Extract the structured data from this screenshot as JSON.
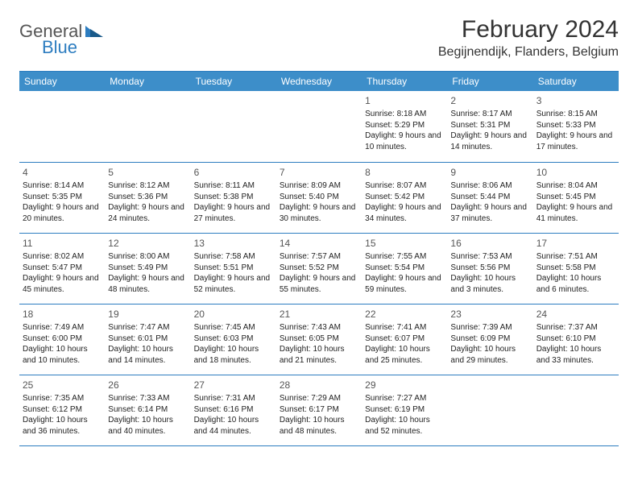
{
  "logo": {
    "text1": "General",
    "text2": "Blue"
  },
  "title": "February 2024",
  "location": "Begijnendijk, Flanders, Belgium",
  "colors": {
    "header_bg": "#3d8ec9",
    "header_text": "#ffffff",
    "border": "#2d7dc0",
    "logo_gray": "#555555",
    "logo_blue": "#2d7dc0",
    "text": "#222222",
    "background": "#ffffff"
  },
  "typography": {
    "title_fontsize": 30,
    "location_fontsize": 16,
    "dayhead_fontsize": 12,
    "daynum_fontsize": 12,
    "body_fontsize": 10
  },
  "layout": {
    "columns": 7,
    "rows": 5,
    "first_weekday_index": 4
  },
  "weekdays": [
    "Sunday",
    "Monday",
    "Tuesday",
    "Wednesday",
    "Thursday",
    "Friday",
    "Saturday"
  ],
  "days": [
    {
      "n": "1",
      "sunrise": "Sunrise: 8:18 AM",
      "sunset": "Sunset: 5:29 PM",
      "daylight": "Daylight: 9 hours and 10 minutes."
    },
    {
      "n": "2",
      "sunrise": "Sunrise: 8:17 AM",
      "sunset": "Sunset: 5:31 PM",
      "daylight": "Daylight: 9 hours and 14 minutes."
    },
    {
      "n": "3",
      "sunrise": "Sunrise: 8:15 AM",
      "sunset": "Sunset: 5:33 PM",
      "daylight": "Daylight: 9 hours and 17 minutes."
    },
    {
      "n": "4",
      "sunrise": "Sunrise: 8:14 AM",
      "sunset": "Sunset: 5:35 PM",
      "daylight": "Daylight: 9 hours and 20 minutes."
    },
    {
      "n": "5",
      "sunrise": "Sunrise: 8:12 AM",
      "sunset": "Sunset: 5:36 PM",
      "daylight": "Daylight: 9 hours and 24 minutes."
    },
    {
      "n": "6",
      "sunrise": "Sunrise: 8:11 AM",
      "sunset": "Sunset: 5:38 PM",
      "daylight": "Daylight: 9 hours and 27 minutes."
    },
    {
      "n": "7",
      "sunrise": "Sunrise: 8:09 AM",
      "sunset": "Sunset: 5:40 PM",
      "daylight": "Daylight: 9 hours and 30 minutes."
    },
    {
      "n": "8",
      "sunrise": "Sunrise: 8:07 AM",
      "sunset": "Sunset: 5:42 PM",
      "daylight": "Daylight: 9 hours and 34 minutes."
    },
    {
      "n": "9",
      "sunrise": "Sunrise: 8:06 AM",
      "sunset": "Sunset: 5:44 PM",
      "daylight": "Daylight: 9 hours and 37 minutes."
    },
    {
      "n": "10",
      "sunrise": "Sunrise: 8:04 AM",
      "sunset": "Sunset: 5:45 PM",
      "daylight": "Daylight: 9 hours and 41 minutes."
    },
    {
      "n": "11",
      "sunrise": "Sunrise: 8:02 AM",
      "sunset": "Sunset: 5:47 PM",
      "daylight": "Daylight: 9 hours and 45 minutes."
    },
    {
      "n": "12",
      "sunrise": "Sunrise: 8:00 AM",
      "sunset": "Sunset: 5:49 PM",
      "daylight": "Daylight: 9 hours and 48 minutes."
    },
    {
      "n": "13",
      "sunrise": "Sunrise: 7:58 AM",
      "sunset": "Sunset: 5:51 PM",
      "daylight": "Daylight: 9 hours and 52 minutes."
    },
    {
      "n": "14",
      "sunrise": "Sunrise: 7:57 AM",
      "sunset": "Sunset: 5:52 PM",
      "daylight": "Daylight: 9 hours and 55 minutes."
    },
    {
      "n": "15",
      "sunrise": "Sunrise: 7:55 AM",
      "sunset": "Sunset: 5:54 PM",
      "daylight": "Daylight: 9 hours and 59 minutes."
    },
    {
      "n": "16",
      "sunrise": "Sunrise: 7:53 AM",
      "sunset": "Sunset: 5:56 PM",
      "daylight": "Daylight: 10 hours and 3 minutes."
    },
    {
      "n": "17",
      "sunrise": "Sunrise: 7:51 AM",
      "sunset": "Sunset: 5:58 PM",
      "daylight": "Daylight: 10 hours and 6 minutes."
    },
    {
      "n": "18",
      "sunrise": "Sunrise: 7:49 AM",
      "sunset": "Sunset: 6:00 PM",
      "daylight": "Daylight: 10 hours and 10 minutes."
    },
    {
      "n": "19",
      "sunrise": "Sunrise: 7:47 AM",
      "sunset": "Sunset: 6:01 PM",
      "daylight": "Daylight: 10 hours and 14 minutes."
    },
    {
      "n": "20",
      "sunrise": "Sunrise: 7:45 AM",
      "sunset": "Sunset: 6:03 PM",
      "daylight": "Daylight: 10 hours and 18 minutes."
    },
    {
      "n": "21",
      "sunrise": "Sunrise: 7:43 AM",
      "sunset": "Sunset: 6:05 PM",
      "daylight": "Daylight: 10 hours and 21 minutes."
    },
    {
      "n": "22",
      "sunrise": "Sunrise: 7:41 AM",
      "sunset": "Sunset: 6:07 PM",
      "daylight": "Daylight: 10 hours and 25 minutes."
    },
    {
      "n": "23",
      "sunrise": "Sunrise: 7:39 AM",
      "sunset": "Sunset: 6:09 PM",
      "daylight": "Daylight: 10 hours and 29 minutes."
    },
    {
      "n": "24",
      "sunrise": "Sunrise: 7:37 AM",
      "sunset": "Sunset: 6:10 PM",
      "daylight": "Daylight: 10 hours and 33 minutes."
    },
    {
      "n": "25",
      "sunrise": "Sunrise: 7:35 AM",
      "sunset": "Sunset: 6:12 PM",
      "daylight": "Daylight: 10 hours and 36 minutes."
    },
    {
      "n": "26",
      "sunrise": "Sunrise: 7:33 AM",
      "sunset": "Sunset: 6:14 PM",
      "daylight": "Daylight: 10 hours and 40 minutes."
    },
    {
      "n": "27",
      "sunrise": "Sunrise: 7:31 AM",
      "sunset": "Sunset: 6:16 PM",
      "daylight": "Daylight: 10 hours and 44 minutes."
    },
    {
      "n": "28",
      "sunrise": "Sunrise: 7:29 AM",
      "sunset": "Sunset: 6:17 PM",
      "daylight": "Daylight: 10 hours and 48 minutes."
    },
    {
      "n": "29",
      "sunrise": "Sunrise: 7:27 AM",
      "sunset": "Sunset: 6:19 PM",
      "daylight": "Daylight: 10 hours and 52 minutes."
    }
  ]
}
